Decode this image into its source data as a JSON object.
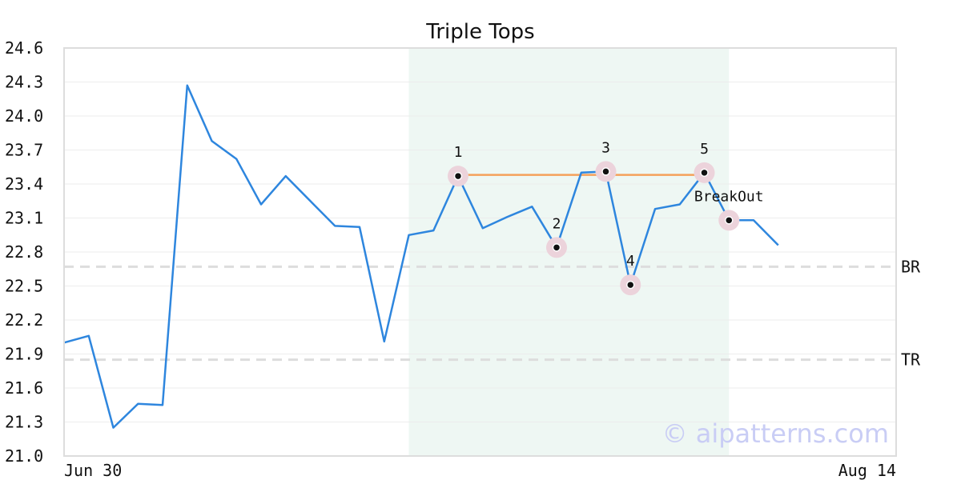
{
  "chart_data": {
    "type": "line",
    "title": "Triple Tops",
    "watermark": "© aipatterns.com",
    "ylim": [
      21.0,
      24.6
    ],
    "yticks": [
      "24.6",
      "24.3",
      "24.0",
      "23.7",
      "23.4",
      "23.1",
      "22.8",
      "22.5",
      "22.2",
      "21.9",
      "21.6",
      "21.3",
      "21.0"
    ],
    "xtick_labels": [
      "Jun 30",
      "Aug 14"
    ],
    "grid": true,
    "colors": {
      "line": "#2e86de",
      "pattern_line": "#f5a05a",
      "highlight": "#eef7f3",
      "marker_halo": "#ecd3db",
      "ref_line": "#dddddd",
      "frame": "#dddddd",
      "watermark": "#c9cdf5"
    },
    "series": [
      {
        "values": [
          22.0,
          22.06,
          21.25,
          21.46,
          21.45,
          24.27,
          23.78,
          23.62,
          23.22,
          23.47,
          23.25,
          23.03,
          23.02,
          22.01,
          22.95,
          22.99,
          23.47,
          23.01,
          23.11,
          23.2,
          22.84,
          23.5,
          23.51,
          22.51,
          23.18,
          23.22,
          23.5,
          23.08,
          23.08,
          22.86
        ]
      }
    ],
    "highlight_range": [
      14,
      27
    ],
    "pattern_line": {
      "from_index": 16,
      "to_index": 26,
      "value": 23.48
    },
    "annotations": [
      {
        "label": "1",
        "index": 16,
        "value": 23.47
      },
      {
        "label": "2",
        "index": 20,
        "value": 22.84
      },
      {
        "label": "3",
        "index": 22,
        "value": 23.51
      },
      {
        "label": "4",
        "index": 23,
        "value": 22.51
      },
      {
        "label": "5",
        "index": 26,
        "value": 23.5
      },
      {
        "label": "BreakOut",
        "index": 27,
        "value": 23.08
      }
    ],
    "reference_lines": [
      {
        "label": "BR",
        "value": 22.67
      },
      {
        "label": "TR",
        "value": 21.85
      }
    ]
  }
}
